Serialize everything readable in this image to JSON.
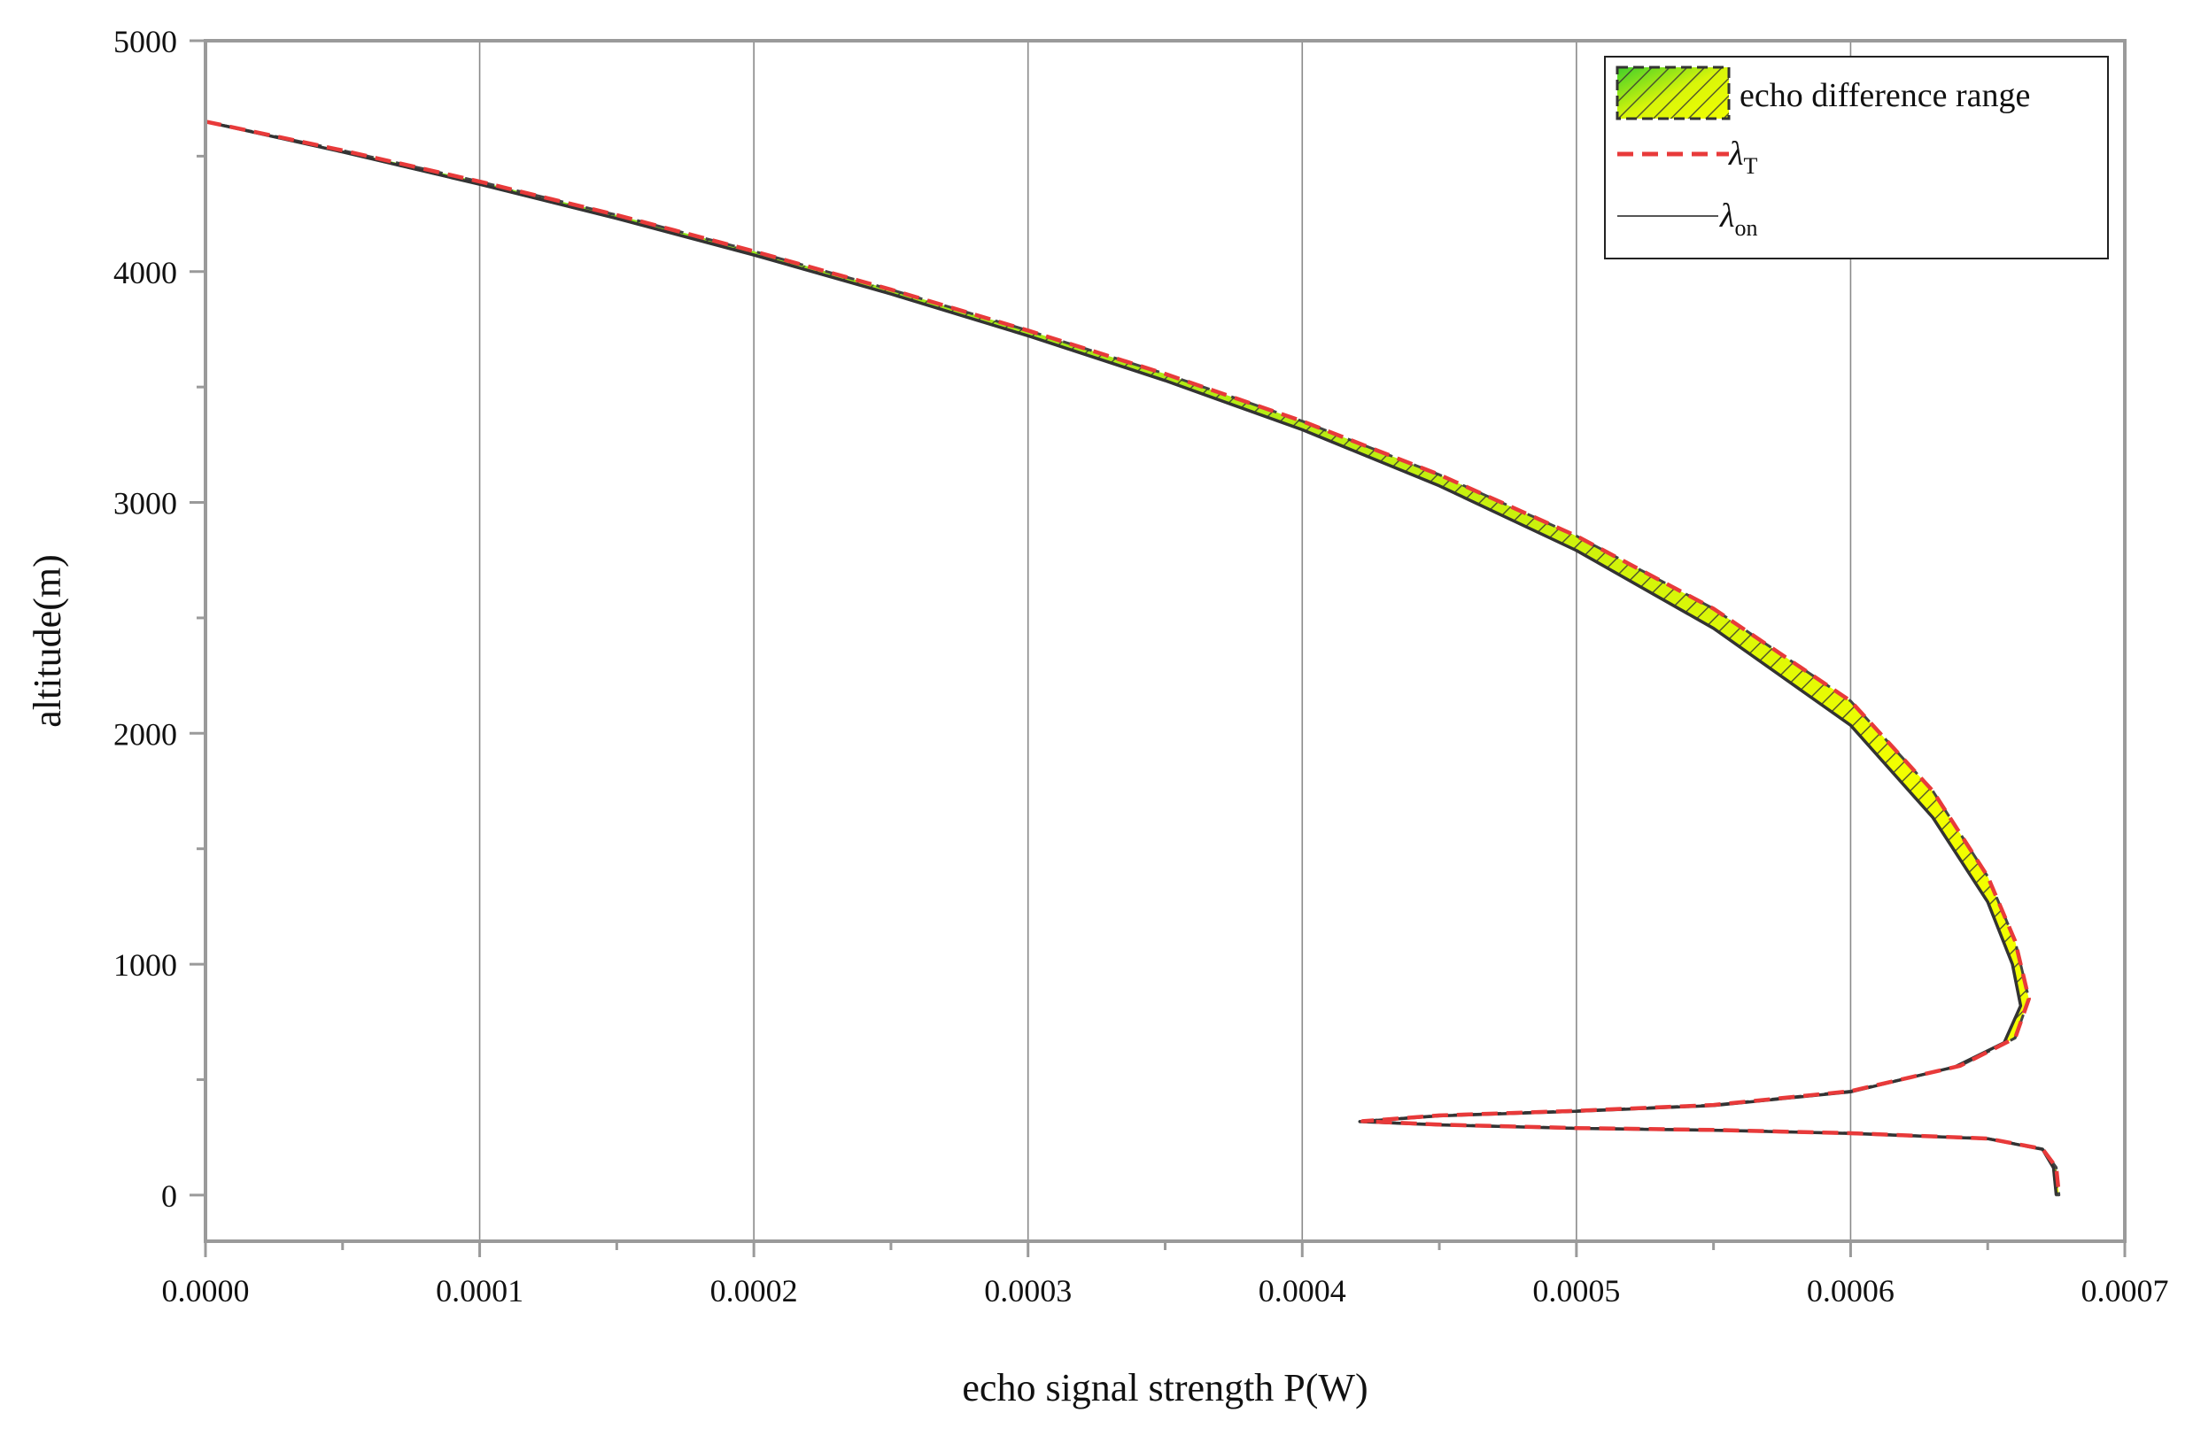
{
  "chart_data": {
    "type": "line",
    "title": "",
    "xlabel": "echo signal strength P(W)",
    "ylabel": "altitude(m)",
    "xlim": [
      0,
      0.0007
    ],
    "ylim": [
      -200,
      5000
    ],
    "x_ticks": [
      "0.0000",
      "0.0001",
      "0.0002",
      "0.0003",
      "0.0004",
      "0.0005",
      "0.0006",
      "0.0007"
    ],
    "y_ticks": [
      "0",
      "1000",
      "2000",
      "3000",
      "4000",
      "5000"
    ],
    "grid": "vertical",
    "legend_position": "top-right",
    "legend": {
      "band": "echo difference range",
      "series_t_symbol": "λ",
      "series_t_sub": "T",
      "series_on_symbol": "λ",
      "series_on_sub": "on"
    },
    "series": [
      {
        "name": "λT",
        "style": "dashed",
        "color": "#e83a3a",
        "points": [
          [
            0.0,
            4650
          ],
          [
            5e-05,
            4525
          ],
          [
            0.0001,
            4390
          ],
          [
            0.00015,
            4245
          ],
          [
            0.0002,
            4088
          ],
          [
            0.00025,
            3922
          ],
          [
            0.0003,
            3745
          ],
          [
            0.00035,
            3557
          ],
          [
            0.0004,
            3352
          ],
          [
            0.00045,
            3120
          ],
          [
            0.0005,
            2855
          ],
          [
            0.00055,
            2540
          ],
          [
            0.0006,
            2140
          ],
          [
            0.00063,
            1750
          ],
          [
            0.00065,
            1380
          ],
          [
            0.00066,
            1100
          ],
          [
            0.000665,
            850
          ],
          [
            0.00066,
            680
          ],
          [
            0.00064,
            560
          ],
          [
            0.0006,
            450
          ],
          [
            0.00055,
            390
          ],
          [
            0.0005,
            365
          ],
          [
            0.00045,
            345
          ],
          [
            0.000422,
            320
          ],
          [
            0.00045,
            305
          ],
          [
            0.0005,
            290
          ],
          [
            0.00055,
            282
          ],
          [
            0.0006,
            268
          ],
          [
            0.00065,
            245
          ],
          [
            0.00067,
            200
          ],
          [
            0.000675,
            120
          ],
          [
            0.000676,
            0
          ]
        ]
      },
      {
        "name": "λon",
        "style": "solid",
        "color": "#333333",
        "points": [
          [
            0.0,
            4650
          ],
          [
            5e-05,
            4518
          ],
          [
            0.0001,
            4378
          ],
          [
            0.00015,
            4230
          ],
          [
            0.0002,
            4072
          ],
          [
            0.00025,
            3903
          ],
          [
            0.0003,
            3722
          ],
          [
            0.00035,
            3528
          ],
          [
            0.0004,
            3315
          ],
          [
            0.00045,
            3072
          ],
          [
            0.0005,
            2792
          ],
          [
            0.00055,
            2455
          ],
          [
            0.0006,
            2035
          ],
          [
            0.00063,
            1635
          ],
          [
            0.00065,
            1270
          ],
          [
            0.000659,
            1000
          ],
          [
            0.000662,
            820
          ],
          [
            0.000656,
            660
          ],
          [
            0.000638,
            555
          ],
          [
            0.0006,
            447
          ],
          [
            0.00055,
            388
          ],
          [
            0.0005,
            363
          ],
          [
            0.00045,
            343
          ],
          [
            0.000421,
            318
          ],
          [
            0.00045,
            304
          ],
          [
            0.0005,
            289
          ],
          [
            0.00055,
            281
          ],
          [
            0.0006,
            267
          ],
          [
            0.00065,
            244
          ],
          [
            0.00067,
            198
          ],
          [
            0.000674,
            118
          ],
          [
            0.000675,
            0
          ]
        ]
      }
    ]
  },
  "colors": {
    "band_fill_top": "#7be01f",
    "band_fill_bottom": "#f2ff00",
    "line_t": "#e83a3a",
    "line_on": "#333333",
    "grid": "#8a8a8a",
    "axis": "#9a9a9a"
  }
}
